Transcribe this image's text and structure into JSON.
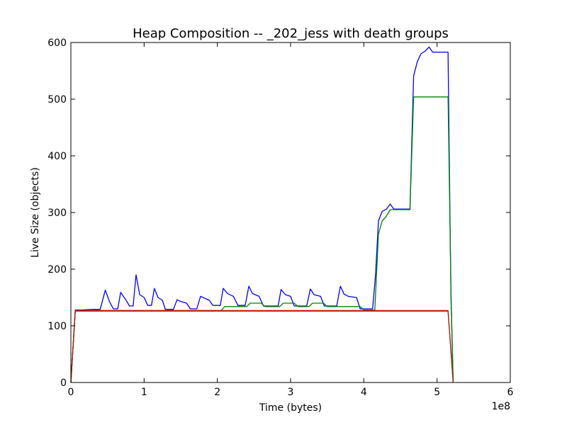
{
  "chart_data": {
    "type": "line",
    "title": "Heap Composition -- _202_jess with death groups",
    "xlabel": "Time (bytes)",
    "ylabel": "Live Size (objects)",
    "x_offset_label": "1e8",
    "xlim": [
      0,
      600000000
    ],
    "ylim": [
      0,
      600
    ],
    "x_ticks": [
      0,
      100000000,
      200000000,
      300000000,
      400000000,
      500000000,
      600000000
    ],
    "x_tick_labels": [
      "0",
      "1",
      "2",
      "3",
      "4",
      "5",
      "6"
    ],
    "y_ticks": [
      0,
      100,
      200,
      300,
      400,
      500,
      600
    ],
    "y_tick_labels": [
      "0",
      "100",
      "200",
      "300",
      "400",
      "500",
      "600"
    ],
    "grid": false,
    "series": [
      {
        "color": "#0000ff",
        "points": [
          [
            0,
            0
          ],
          [
            6000000,
            128
          ],
          [
            15000000,
            128
          ],
          [
            30000000,
            129
          ],
          [
            40000000,
            129
          ],
          [
            47000000,
            163
          ],
          [
            53000000,
            142
          ],
          [
            58000000,
            130
          ],
          [
            64000000,
            130
          ],
          [
            68000000,
            159
          ],
          [
            75000000,
            146
          ],
          [
            80000000,
            135
          ],
          [
            85000000,
            135
          ],
          [
            89000000,
            190
          ],
          [
            94000000,
            155
          ],
          [
            100000000,
            150
          ],
          [
            105000000,
            136
          ],
          [
            110000000,
            136
          ],
          [
            114000000,
            166
          ],
          [
            119000000,
            150
          ],
          [
            125000000,
            145
          ],
          [
            129000000,
            129
          ],
          [
            140000000,
            129
          ],
          [
            145000000,
            146
          ],
          [
            150000000,
            143
          ],
          [
            158000000,
            140
          ],
          [
            163000000,
            130
          ],
          [
            172000000,
            130
          ],
          [
            177000000,
            152
          ],
          [
            184000000,
            148
          ],
          [
            189000000,
            145
          ],
          [
            194000000,
            136
          ],
          [
            204000000,
            136
          ],
          [
            208000000,
            166
          ],
          [
            214000000,
            157
          ],
          [
            222000000,
            152
          ],
          [
            228000000,
            136
          ],
          [
            238000000,
            136
          ],
          [
            243000000,
            170
          ],
          [
            248000000,
            157
          ],
          [
            257000000,
            152
          ],
          [
            263000000,
            135
          ],
          [
            283000000,
            135
          ],
          [
            287000000,
            164
          ],
          [
            293000000,
            155
          ],
          [
            300000000,
            152
          ],
          [
            305000000,
            135
          ],
          [
            322000000,
            135
          ],
          [
            327000000,
            165
          ],
          [
            332000000,
            155
          ],
          [
            341000000,
            152
          ],
          [
            346000000,
            135
          ],
          [
            363000000,
            135
          ],
          [
            368000000,
            170
          ],
          [
            373000000,
            156
          ],
          [
            379000000,
            152
          ],
          [
            390000000,
            150
          ],
          [
            395000000,
            130
          ],
          [
            412000000,
            130
          ],
          [
            416000000,
            190
          ],
          [
            420000000,
            285
          ],
          [
            425000000,
            302
          ],
          [
            431000000,
            306
          ],
          [
            436000000,
            315
          ],
          [
            441000000,
            306
          ],
          [
            463000000,
            306
          ],
          [
            468000000,
            541
          ],
          [
            473000000,
            566
          ],
          [
            478000000,
            580
          ],
          [
            484000000,
            585
          ],
          [
            489000000,
            592
          ],
          [
            494000000,
            583
          ],
          [
            515000000,
            583
          ],
          [
            516000000,
            470
          ],
          [
            519000000,
            150
          ],
          [
            522000000,
            0
          ]
        ]
      },
      {
        "color": "#008000",
        "points": [
          [
            0,
            0
          ],
          [
            6000000,
            127
          ],
          [
            205000000,
            127
          ],
          [
            210000000,
            134
          ],
          [
            240000000,
            134
          ],
          [
            245000000,
            140
          ],
          [
            260000000,
            140
          ],
          [
            265000000,
            134
          ],
          [
            285000000,
            134
          ],
          [
            290000000,
            140
          ],
          [
            305000000,
            140
          ],
          [
            310000000,
            134
          ],
          [
            325000000,
            134
          ],
          [
            330000000,
            140
          ],
          [
            345000000,
            140
          ],
          [
            350000000,
            134
          ],
          [
            395000000,
            134
          ],
          [
            400000000,
            128
          ],
          [
            415000000,
            128
          ],
          [
            420000000,
            262
          ],
          [
            425000000,
            285
          ],
          [
            430000000,
            292
          ],
          [
            436000000,
            305
          ],
          [
            463000000,
            305
          ],
          [
            468000000,
            504
          ],
          [
            515000000,
            504
          ],
          [
            519000000,
            160
          ],
          [
            522000000,
            0
          ]
        ]
      },
      {
        "color": "#ff0000",
        "points": [
          [
            0,
            0
          ],
          [
            6000000,
            127
          ],
          [
            515000000,
            127
          ],
          [
            522000000,
            0
          ]
        ]
      },
      {
        "color": "#8b2c10",
        "points": [
          [
            0,
            0
          ],
          [
            6000000,
            126
          ],
          [
            515000000,
            126
          ],
          [
            522000000,
            0
          ]
        ]
      }
    ]
  }
}
